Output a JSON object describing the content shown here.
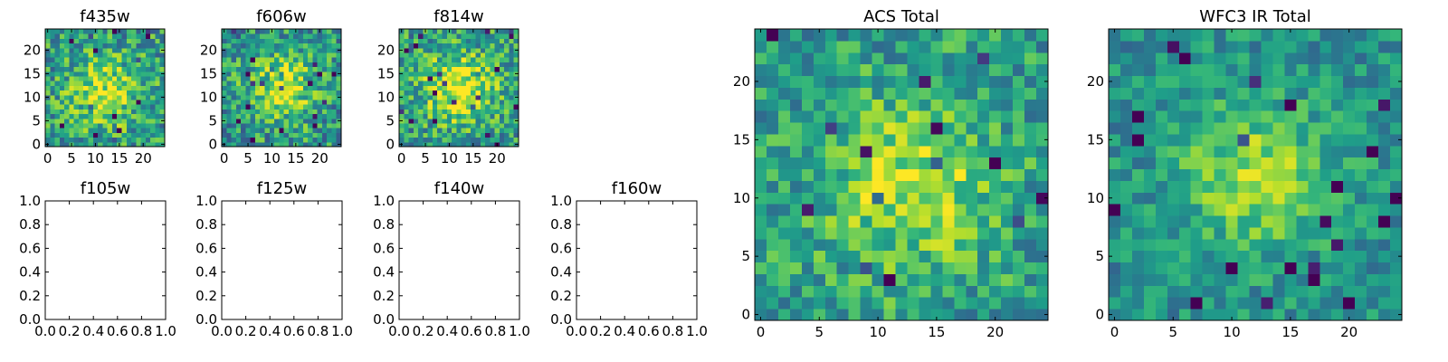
{
  "chart_data": [
    {
      "type": "heatmap",
      "title": "f435w",
      "colormap": "viridis",
      "grid": false,
      "size": [
        25,
        25
      ],
      "xlim": [
        -0.5,
        24.5
      ],
      "ylim": [
        -0.5,
        24.5
      ],
      "xticks": [
        0,
        5,
        10,
        15,
        20
      ],
      "yticks": [
        0,
        5,
        10,
        15,
        20
      ],
      "seed": 11,
      "noise": 0.55,
      "blob_center": [
        12,
        11
      ],
      "blob_sigma": 5,
      "blob_strength": 0.35,
      "base": 0.55
    },
    {
      "type": "heatmap",
      "title": "f606w",
      "colormap": "viridis",
      "grid": false,
      "size": [
        25,
        25
      ],
      "xlim": [
        -0.5,
        24.5
      ],
      "ylim": [
        -0.5,
        24.5
      ],
      "xticks": [
        0,
        5,
        10,
        15,
        20
      ],
      "yticks": [
        0,
        5,
        10,
        15,
        20
      ],
      "seed": 23,
      "noise": 0.55,
      "blob_center": [
        12,
        12
      ],
      "blob_sigma": 5,
      "blob_strength": 0.4,
      "base": 0.52
    },
    {
      "type": "heatmap",
      "title": "f814w",
      "colormap": "viridis",
      "grid": false,
      "size": [
        25,
        25
      ],
      "xlim": [
        -0.5,
        24.5
      ],
      "ylim": [
        -0.5,
        24.5
      ],
      "xticks": [
        0,
        5,
        10,
        15,
        20
      ],
      "yticks": [
        0,
        5,
        10,
        15,
        20
      ],
      "seed": 37,
      "noise": 0.55,
      "blob_center": [
        12,
        12
      ],
      "blob_sigma": 5,
      "blob_strength": 0.45,
      "base": 0.55
    },
    {
      "type": "line",
      "title": "f105w",
      "series": [],
      "grid": false,
      "xlim": [
        0.0,
        1.0
      ],
      "ylim": [
        0.0,
        1.0
      ],
      "xticks": [
        "0.0",
        "0.2",
        "0.4",
        "0.6",
        "0.8",
        "1.0"
      ],
      "yticks": [
        "0.0",
        "0.2",
        "0.4",
        "0.6",
        "0.8",
        "1.0"
      ]
    },
    {
      "type": "line",
      "title": "f125w",
      "series": [],
      "grid": false,
      "xlim": [
        0.0,
        1.0
      ],
      "ylim": [
        0.0,
        1.0
      ],
      "xticks": [
        "0.0",
        "0.2",
        "0.4",
        "0.6",
        "0.8",
        "1.0"
      ],
      "yticks": [
        "0.0",
        "0.2",
        "0.4",
        "0.6",
        "0.8",
        "1.0"
      ]
    },
    {
      "type": "line",
      "title": "f140w",
      "series": [],
      "grid": false,
      "xlim": [
        0.0,
        1.0
      ],
      "ylim": [
        0.0,
        1.0
      ],
      "xticks": [
        "0.0",
        "0.2",
        "0.4",
        "0.6",
        "0.8",
        "1.0"
      ],
      "yticks": [
        "0.0",
        "0.2",
        "0.4",
        "0.6",
        "0.8",
        "1.0"
      ]
    },
    {
      "type": "line",
      "title": "f160w",
      "series": [],
      "grid": false,
      "xlim": [
        0.0,
        1.0
      ],
      "ylim": [
        0.0,
        1.0
      ],
      "xticks": [
        "0.0",
        "0.2",
        "0.4",
        "0.6",
        "0.8",
        "1.0"
      ],
      "yticks": [
        "0.0",
        "0.2",
        "0.4",
        "0.6",
        "0.8",
        "1.0"
      ]
    },
    {
      "type": "heatmap",
      "title": "ACS Total",
      "colormap": "viridis",
      "grid": false,
      "size": [
        25,
        25
      ],
      "xlim": [
        -0.5,
        24.5
      ],
      "ylim": [
        -0.5,
        24.5
      ],
      "xticks": [
        0,
        5,
        10,
        15,
        20
      ],
      "yticks": [
        0,
        5,
        10,
        15,
        20
      ],
      "seed": 53,
      "noise": 0.45,
      "blob_center": [
        13,
        11
      ],
      "blob_sigma": 5,
      "blob_strength": 0.35,
      "base": 0.55
    },
    {
      "type": "heatmap",
      "title": "WFC3 IR Total",
      "colormap": "viridis",
      "grid": false,
      "size": [
        25,
        25
      ],
      "xlim": [
        -0.5,
        24.5
      ],
      "ylim": [
        -0.5,
        24.5
      ],
      "xticks": [
        0,
        5,
        10,
        15,
        20
      ],
      "yticks": [
        0,
        5,
        10,
        15,
        20
      ],
      "seed": 71,
      "noise": 0.35,
      "blob_center": [
        12,
        12
      ],
      "blob_sigma": 4.5,
      "blob_strength": 0.35,
      "base": 0.5
    }
  ]
}
